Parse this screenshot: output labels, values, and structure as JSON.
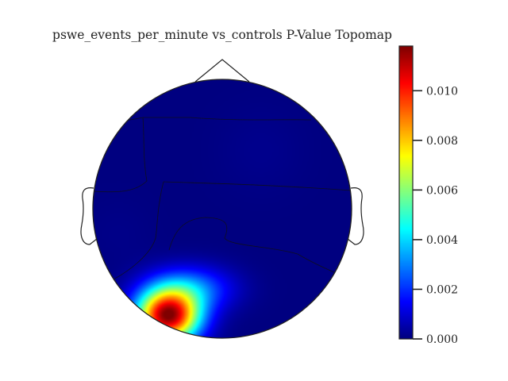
{
  "chart_data": {
    "type": "heatmap",
    "title": "pswe_events_per_minute vs_controls P-Value Topomap",
    "colormap": "jet",
    "colorbar": {
      "range": [
        0.0,
        0.0118
      ],
      "ticks": [
        {
          "value": 0.0,
          "label": "0.000"
        },
        {
          "value": 0.002,
          "label": "0.002"
        },
        {
          "value": 0.004,
          "label": "0.004"
        },
        {
          "value": 0.006,
          "label": "0.006"
        },
        {
          "value": 0.008,
          "label": "0.008"
        },
        {
          "value": 0.01,
          "label": "0.010"
        }
      ]
    },
    "contour_levels": [
      0.0002,
      0.0008,
      0.002,
      0.004,
      0.006,
      0.0085
    ],
    "hotspots": [
      {
        "region": "occipital-left",
        "u": -0.42,
        "v": -0.83,
        "su": 0.24,
        "sv": 0.2,
        "value": 0.0115
      },
      {
        "region": "occipital-center",
        "u": -0.25,
        "v": -0.62,
        "su": 0.32,
        "sv": 0.17,
        "value": 0.0028
      }
    ]
  }
}
